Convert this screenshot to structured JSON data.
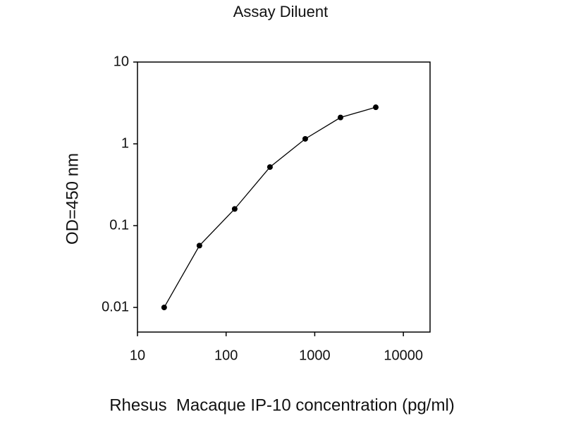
{
  "chart_data": {
    "type": "line",
    "title": "Assay Diluent",
    "x_label": "Rhesus  Macaque IP-10 concentration (pg/ml)",
    "y_label": "OD=450 nm",
    "x": [
      20,
      50,
      125,
      312.5,
      781.25,
      1953.125,
      4882.8125
    ],
    "series": [
      {
        "name": "Assay Diluent",
        "color": "#000000",
        "values": [
          0.01,
          0.057,
          0.16,
          0.52,
          1.15,
          2.1,
          2.8
        ]
      }
    ],
    "xlim": [
      10,
      20000
    ],
    "xticks": [
      10,
      100,
      1000,
      10000
    ],
    "ylim": [
      0.005,
      10
    ],
    "yticks": [
      0.01,
      0.1,
      1,
      10
    ],
    "xscale": "log",
    "yscale": "log",
    "grid": false
  }
}
